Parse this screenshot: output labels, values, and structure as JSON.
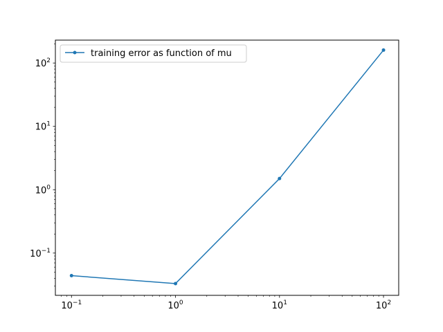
{
  "chart_data": {
    "type": "line",
    "title": "",
    "xlabel": "",
    "ylabel": "",
    "x_scale": "log",
    "y_scale": "log",
    "xlim": [
      0.07,
      140
    ],
    "ylim": [
      0.0215,
      230
    ],
    "grid": false,
    "legend_location": "upper-left",
    "x_ticks": [
      {
        "value": 0.1,
        "base": "10",
        "exp": "−1"
      },
      {
        "value": 1,
        "base": "10",
        "exp": "0"
      },
      {
        "value": 10,
        "base": "10",
        "exp": "1"
      },
      {
        "value": 100,
        "base": "10",
        "exp": "2"
      }
    ],
    "y_ticks": [
      {
        "value": 0.1,
        "base": "10",
        "exp": "−1"
      },
      {
        "value": 1,
        "base": "10",
        "exp": "0"
      },
      {
        "value": 10,
        "base": "10",
        "exp": "1"
      },
      {
        "value": 100,
        "base": "10",
        "exp": "2"
      }
    ],
    "series": [
      {
        "name": "training error as function of mu",
        "color": "#1f77b4",
        "marker": "dot",
        "x": [
          0.1,
          1,
          10,
          100
        ],
        "y": [
          0.044,
          0.033,
          1.5,
          160
        ]
      }
    ]
  }
}
